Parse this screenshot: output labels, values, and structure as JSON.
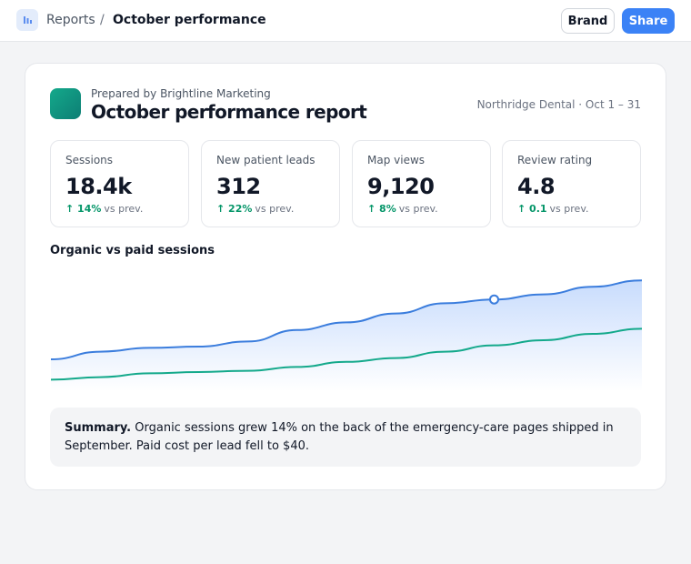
{
  "header": {
    "breadcrumb": [
      "Reports",
      "/",
      "October performance"
    ],
    "buttons": [
      "Brand",
      "Share"
    ]
  },
  "report": {
    "prepared_by": "Prepared by Brightline Marketing",
    "title": "October performance report",
    "meta": "Northridge Dental · Oct 1 – 31",
    "kpis": [
      {
        "label": "Sessions",
        "value": "18.4k",
        "change": "↑ 14%",
        "suffix": "vs prev."
      },
      {
        "label": "New patient leads",
        "value": "312",
        "change": "↑ 22%",
        "suffix": "vs prev."
      },
      {
        "label": "Map views",
        "value": "9,120",
        "change": "↑ 8%",
        "suffix": "vs prev."
      },
      {
        "label": "Review rating",
        "value": "4.8",
        "change": "↑ 0.1",
        "suffix": "vs prev."
      }
    ],
    "chart_data": {
      "type": "area-line",
      "title": "Organic vs paid sessions",
      "ylim": [
        0,
        100
      ],
      "highlight": 9,
      "series": [
        {
          "color": "#3b7ddd",
          "values": [
            25,
            31,
            34,
            35,
            39,
            48,
            54,
            61,
            69,
            72,
            76,
            82,
            87
          ]
        },
        {
          "color": "#14a98b",
          "values": [
            9,
            11,
            14,
            15,
            16,
            19,
            23,
            26,
            31,
            36,
            40,
            45,
            49
          ]
        }
      ]
    },
    "summary": {
      "lead": "Summary.",
      "text": "Organic sessions grew 14% on the back of the emergency-care pages shipped in September. Paid cost per lead fell to $40."
    }
  }
}
